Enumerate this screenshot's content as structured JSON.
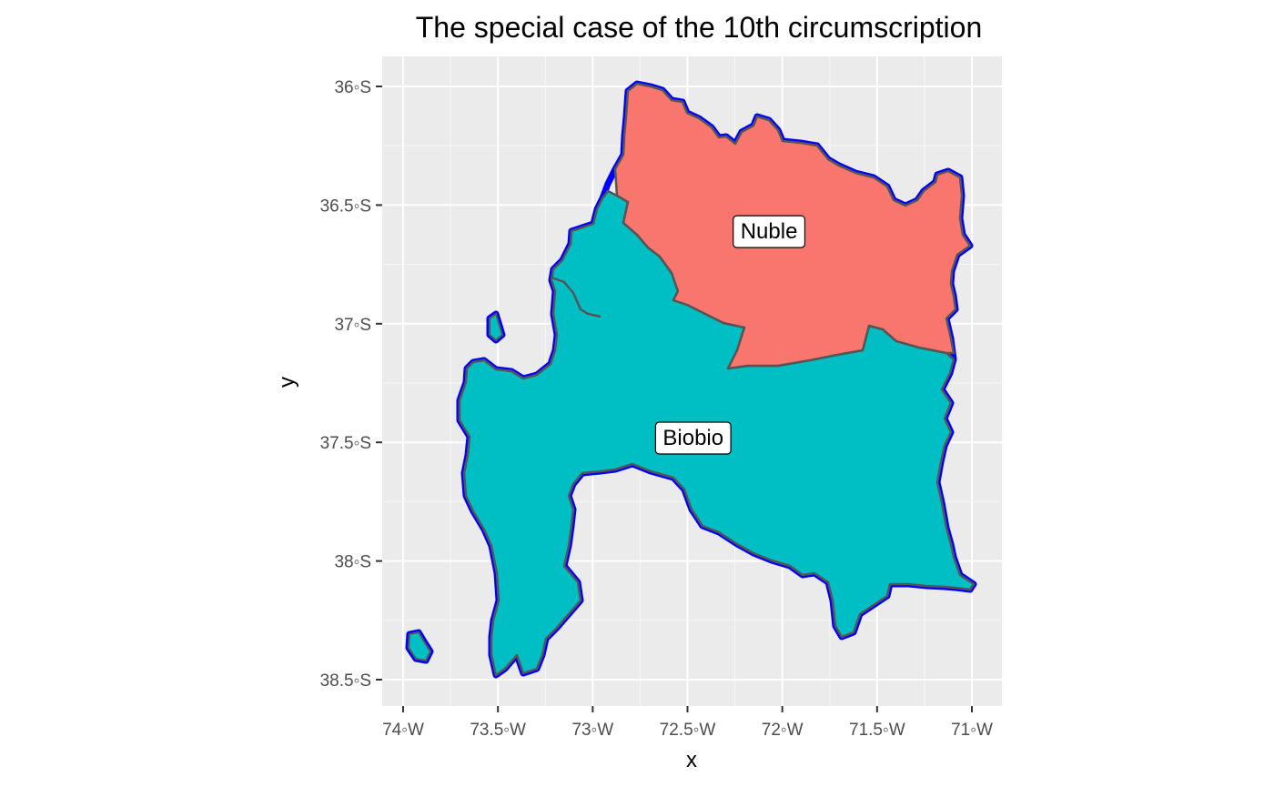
{
  "map": {
    "title": "The special case of the 10th circumscription",
    "x_axis": {
      "title": "x",
      "ticks": [
        {
          "value": -74.0,
          "label": "74◦W"
        },
        {
          "value": -73.5,
          "label": "73.5◦W"
        },
        {
          "value": -73.0,
          "label": "73◦W"
        },
        {
          "value": -72.5,
          "label": "72.5◦W"
        },
        {
          "value": -72.0,
          "label": "72◦W"
        },
        {
          "value": -71.5,
          "label": "71.5◦W"
        },
        {
          "value": -71.0,
          "label": "71◦W"
        }
      ]
    },
    "y_axis": {
      "title": "y",
      "ticks": [
        {
          "value": -36.0,
          "label": "36◦S"
        },
        {
          "value": -36.5,
          "label": "36.5◦S"
        },
        {
          "value": -37.0,
          "label": "37◦S"
        },
        {
          "value": -37.5,
          "label": "37.5◦S"
        },
        {
          "value": -38.0,
          "label": "38◦S"
        },
        {
          "value": -38.5,
          "label": "38.5◦S"
        }
      ]
    },
    "regions": [
      {
        "name": "Nuble",
        "fill": "#F8766D",
        "label_lon": -72.07,
        "label_lat": -36.61
      },
      {
        "name": "Biobio",
        "fill": "#00BFC4",
        "label_lon": -72.47,
        "label_lat": -37.48
      }
    ],
    "colors": {
      "panel_background": "#EBEBEB",
      "grid": "#FFFFFF",
      "circumscription_outline": "#0000FF",
      "region_border": "#555555"
    }
  }
}
